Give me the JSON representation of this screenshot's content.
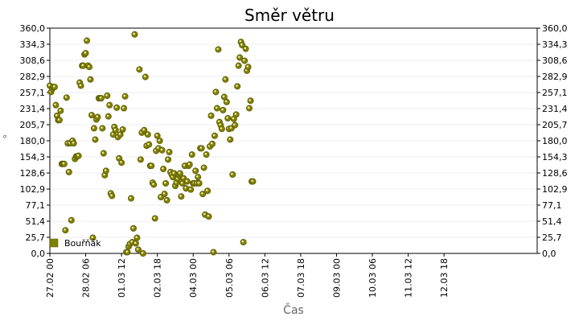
{
  "chart_data": {
    "type": "scatter",
    "title": "Směr větru",
    "xlabel": "Čas",
    "ylabel": "°",
    "ylim": [
      0,
      360
    ],
    "y_ticks": [
      "0,0",
      "25,7",
      "51,4",
      "77,1",
      "102,9",
      "128,6",
      "154,3",
      "180,0",
      "205,7",
      "231,4",
      "257,1",
      "282,9",
      "308,6",
      "334,3",
      "360,0"
    ],
    "x_ticks": [
      "27.02 00",
      "28.02 06",
      "01.03 12",
      "02.03 18",
      "04.03 00",
      "05.03 06",
      "06.03 12",
      "07.03 18",
      "09.03 00",
      "10.03 06",
      "11.03 12",
      "12.03 18"
    ],
    "x_range_hours": [
      0,
      408
    ],
    "x_tick_hours": [
      0,
      30,
      60,
      90,
      120,
      150,
      180,
      210,
      240,
      270,
      300,
      330
    ],
    "grid": true,
    "legend_position": "bottom-left",
    "marker_color": "#808000",
    "series": [
      {
        "name": "Bouřňák",
        "points": [
          [
            0,
            268
          ],
          [
            1,
            258
          ],
          [
            2,
            263
          ],
          [
            3,
            266
          ],
          [
            4,
            266
          ],
          [
            5,
            237
          ],
          [
            6,
            220
          ],
          [
            7,
            213
          ],
          [
            8,
            213
          ],
          [
            9,
            228
          ],
          [
            10,
            143
          ],
          [
            11,
            143
          ],
          [
            12,
            143
          ],
          [
            13,
            37
          ],
          [
            14,
            249
          ],
          [
            15,
            176
          ],
          [
            16,
            130
          ],
          [
            17,
            176
          ],
          [
            18,
            53
          ],
          [
            19,
            180
          ],
          [
            20,
            176
          ],
          [
            21,
            151
          ],
          [
            22,
            155
          ],
          [
            23,
            155
          ],
          [
            24,
            156
          ],
          [
            25,
            273
          ],
          [
            26,
            268
          ],
          [
            27,
            300
          ],
          [
            28,
            300
          ],
          [
            29,
            318
          ],
          [
            30,
            320
          ],
          [
            31,
            340
          ],
          [
            32,
            300
          ],
          [
            33,
            298
          ],
          [
            34,
            278
          ],
          [
            35,
            221
          ],
          [
            36,
            25
          ],
          [
            37,
            200
          ],
          [
            38,
            182
          ],
          [
            39,
            214
          ],
          [
            40,
            218
          ],
          [
            41,
            248
          ],
          [
            42,
            248
          ],
          [
            43,
            248
          ],
          [
            44,
            200
          ],
          [
            45,
            160
          ],
          [
            46,
            125
          ],
          [
            47,
            132
          ],
          [
            48,
            252
          ],
          [
            49,
            219
          ],
          [
            50,
            237
          ],
          [
            51,
            96
          ],
          [
            52,
            92
          ],
          [
            53,
            190
          ],
          [
            54,
            202
          ],
          [
            55,
            197
          ],
          [
            56,
            233
          ],
          [
            57,
            186
          ],
          [
            58,
            152
          ],
          [
            59,
            190
          ],
          [
            60,
            145
          ],
          [
            61,
            198
          ],
          [
            62,
            232
          ],
          [
            63,
            251
          ],
          [
            64,
            2
          ],
          [
            65,
            2
          ],
          [
            66,
            11
          ],
          [
            67,
            15
          ],
          [
            68,
            88
          ],
          [
            69,
            18
          ],
          [
            70,
            40
          ],
          [
            71,
            350
          ],
          [
            72,
            16
          ],
          [
            73,
            25
          ],
          [
            74,
            6
          ],
          [
            75,
            294
          ],
          [
            76,
            150
          ],
          [
            77,
            193
          ],
          [
            78,
            0
          ],
          [
            79,
            197
          ],
          [
            80,
            282
          ],
          [
            81,
            172
          ],
          [
            82,
            190
          ],
          [
            83,
            174
          ],
          [
            84,
            140
          ],
          [
            85,
            140
          ],
          [
            86,
            113
          ],
          [
            87,
            110
          ],
          [
            88,
            56
          ],
          [
            89,
            164
          ],
          [
            90,
            188
          ],
          [
            91,
            168
          ],
          [
            92,
            180
          ],
          [
            93,
            90
          ],
          [
            94,
            165
          ],
          [
            95,
            135
          ],
          [
            96,
            95
          ],
          [
            97,
            112
          ],
          [
            98,
            85
          ],
          [
            99,
            150
          ],
          [
            100,
            162
          ],
          [
            101,
            130
          ],
          [
            102,
            126
          ],
          [
            103,
            122
          ],
          [
            104,
            128
          ],
          [
            105,
            108
          ],
          [
            106,
            113
          ],
          [
            107,
            119
          ],
          [
            108,
            125
          ],
          [
            109,
            128
          ],
          [
            110,
            91
          ],
          [
            111,
            112
          ],
          [
            112,
            120
          ],
          [
            113,
            140
          ],
          [
            114,
            104
          ],
          [
            115,
            115
          ],
          [
            116,
            140
          ],
          [
            117,
            142
          ],
          [
            118,
            102
          ],
          [
            119,
            158
          ],
          [
            120,
            112
          ],
          [
            121,
            112
          ],
          [
            122,
            132
          ],
          [
            123,
            112
          ],
          [
            124,
            122
          ],
          [
            125,
            112
          ],
          [
            126,
            168
          ],
          [
            127,
            168
          ],
          [
            128,
            95
          ],
          [
            129,
            137
          ],
          [
            130,
            62
          ],
          [
            131,
            158
          ],
          [
            132,
            100
          ],
          [
            133,
            59
          ],
          [
            134,
            171
          ],
          [
            135,
            220
          ],
          [
            136,
            175
          ],
          [
            137,
            2
          ],
          [
            138,
            188
          ],
          [
            139,
            258
          ],
          [
            140,
            232
          ],
          [
            141,
            326
          ],
          [
            142,
            210
          ],
          [
            143,
            205
          ],
          [
            144,
            199
          ],
          [
            145,
            229
          ],
          [
            146,
            250
          ],
          [
            147,
            278
          ],
          [
            148,
            242
          ],
          [
            149,
            216
          ],
          [
            150,
            199
          ],
          [
            151,
            182
          ],
          [
            152,
            200
          ],
          [
            153,
            126
          ],
          [
            154,
            215
          ],
          [
            155,
            205
          ],
          [
            156,
            222
          ],
          [
            157,
            267
          ],
          [
            158,
            300
          ],
          [
            159,
            313
          ],
          [
            160,
            338
          ],
          [
            161,
            333
          ],
          [
            162,
            18
          ],
          [
            163,
            308
          ],
          [
            164,
            327
          ],
          [
            165,
            292
          ],
          [
            166,
            298
          ],
          [
            167,
            232
          ],
          [
            168,
            244
          ],
          [
            169,
            115
          ],
          [
            170,
            115
          ]
        ]
      }
    ]
  }
}
